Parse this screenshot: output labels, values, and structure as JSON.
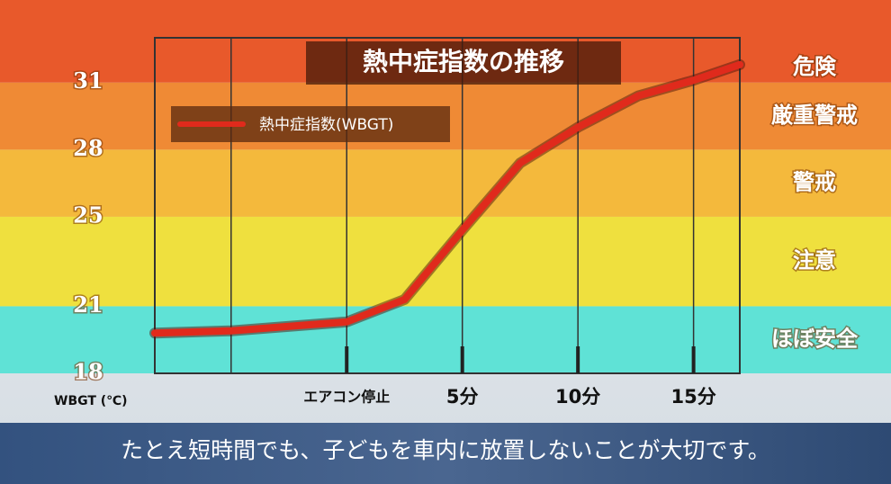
{
  "chart_data": {
    "type": "line",
    "title": "熱中症指数の推移",
    "ylabel": "WBGT (℃)",
    "x": [
      -8.3,
      -5,
      0,
      2.5,
      5,
      7.5,
      10,
      12.6,
      15,
      17
    ],
    "series": [
      {
        "name": "熱中症指数(WBGT)",
        "color": "#e02a1c",
        "values": [
          19.8,
          19.9,
          20.3,
          21.3,
          24.4,
          27.4,
          29.0,
          30.4,
          31.1,
          31.8
        ]
      }
    ],
    "xlim": [
      -8.3,
      17
    ],
    "xgrid": [
      -5,
      0,
      5,
      10,
      15
    ],
    "xticks": [
      {
        "value": 0,
        "label": "エアコン停止"
      },
      {
        "value": 5,
        "label": "5分"
      },
      {
        "value": 10,
        "label": "10分"
      },
      {
        "value": 15,
        "label": "15分"
      }
    ],
    "ylim": [
      18,
      33
    ],
    "yticks": [
      18,
      21,
      25,
      28,
      31
    ],
    "zones": [
      {
        "label": "ほぼ安全",
        "from": 18,
        "color": "#5fe2d6"
      },
      {
        "label": "注意",
        "from": 21,
        "color": "#efe03e"
      },
      {
        "label": "警戒",
        "from": 25,
        "color": "#f4b93c"
      },
      {
        "label": "厳重警戒",
        "from": 28,
        "color": "#ef8a35"
      },
      {
        "label": "危険",
        "from": 31,
        "color": "#e8592b"
      }
    ],
    "caption": "たとえ短時間でも、子どもを車内に放置しないことが大切です。"
  }
}
